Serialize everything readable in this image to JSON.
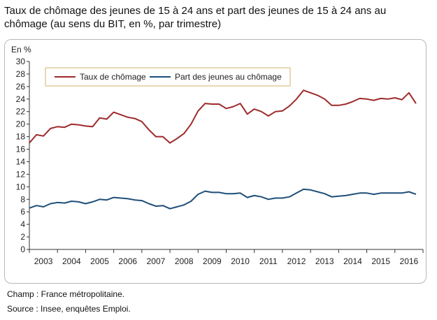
{
  "title": "Taux de chômage des jeunes de 15 à 24 ans et part des jeunes de 15 à 24 ans au chômage (au sens du BIT, en %, par trimestre)",
  "notes": {
    "champ": "Champ : France métropolitaine.",
    "source": "Source : Insee, enquêtes Emploi."
  },
  "chart_data": {
    "type": "line",
    "title": "Taux de chômage des jeunes de 15 à 24 ans et part des jeunes de 15 à 24 ans au chômage (au sens du BIT, en %, par trimestre)",
    "ylabel": "En %",
    "xlabel": "",
    "ylim": [
      0,
      30
    ],
    "yticks": [
      0,
      2,
      4,
      6,
      8,
      10,
      12,
      14,
      16,
      18,
      20,
      22,
      24,
      26,
      28,
      30
    ],
    "xlim": [
      2003.0,
      2017.0
    ],
    "year_labels": [
      "2003",
      "2004",
      "2005",
      "2006",
      "2007",
      "2008",
      "2009",
      "2010",
      "2011",
      "2012",
      "2013",
      "2014",
      "2015",
      "2016"
    ],
    "grid": false,
    "legend_position": "top",
    "x": [
      2003.0,
      2003.25,
      2003.5,
      2003.75,
      2004.0,
      2004.25,
      2004.5,
      2004.75,
      2005.0,
      2005.25,
      2005.5,
      2005.75,
      2006.0,
      2006.25,
      2006.5,
      2006.75,
      2007.0,
      2007.25,
      2007.5,
      2007.75,
      2008.0,
      2008.25,
      2008.5,
      2008.75,
      2009.0,
      2009.25,
      2009.5,
      2009.75,
      2010.0,
      2010.25,
      2010.5,
      2010.75,
      2011.0,
      2011.25,
      2011.5,
      2011.75,
      2012.0,
      2012.25,
      2012.5,
      2012.75,
      2013.0,
      2013.25,
      2013.5,
      2013.75,
      2014.0,
      2014.25,
      2014.5,
      2014.75,
      2015.0,
      2015.25,
      2015.5,
      2015.75,
      2016.0,
      2016.25,
      2016.5,
      2016.75
    ],
    "series": [
      {
        "name": "Taux de chômage",
        "color": "#9e2a2b",
        "values": [
          17.0,
          18.3,
          18.1,
          19.3,
          19.6,
          19.5,
          20.0,
          19.9,
          19.7,
          19.6,
          21.0,
          20.8,
          21.9,
          21.5,
          21.1,
          20.9,
          20.4,
          19.1,
          18.0,
          18.0,
          17.0,
          17.7,
          18.5,
          20.0,
          22.1,
          23.3,
          23.2,
          23.2,
          22.5,
          22.8,
          23.3,
          21.6,
          22.4,
          22.0,
          21.3,
          22.0,
          22.1,
          22.9,
          24.0,
          25.4,
          25.0,
          24.6,
          24.0,
          23.0,
          23.0,
          23.2,
          23.6,
          24.1,
          24.0,
          23.8,
          24.1,
          24.0,
          24.2,
          23.9,
          25.0,
          23.3
        ]
      },
      {
        "name": "Part des jeunes au chômage",
        "color": "#1f4e79",
        "values": [
          6.6,
          7.0,
          6.8,
          7.3,
          7.5,
          7.4,
          7.7,
          7.6,
          7.3,
          7.6,
          8.0,
          7.9,
          8.3,
          8.2,
          8.1,
          7.9,
          7.8,
          7.3,
          6.9,
          7.0,
          6.5,
          6.8,
          7.1,
          7.7,
          8.8,
          9.3,
          9.1,
          9.1,
          8.9,
          8.9,
          9.0,
          8.3,
          8.6,
          8.4,
          8.0,
          8.2,
          8.2,
          8.4,
          9.0,
          9.6,
          9.5,
          9.2,
          8.9,
          8.4,
          8.5,
          8.6,
          8.8,
          9.0,
          9.0,
          8.8,
          9.0,
          9.0,
          9.0,
          9.0,
          9.2,
          8.8
        ]
      }
    ]
  }
}
